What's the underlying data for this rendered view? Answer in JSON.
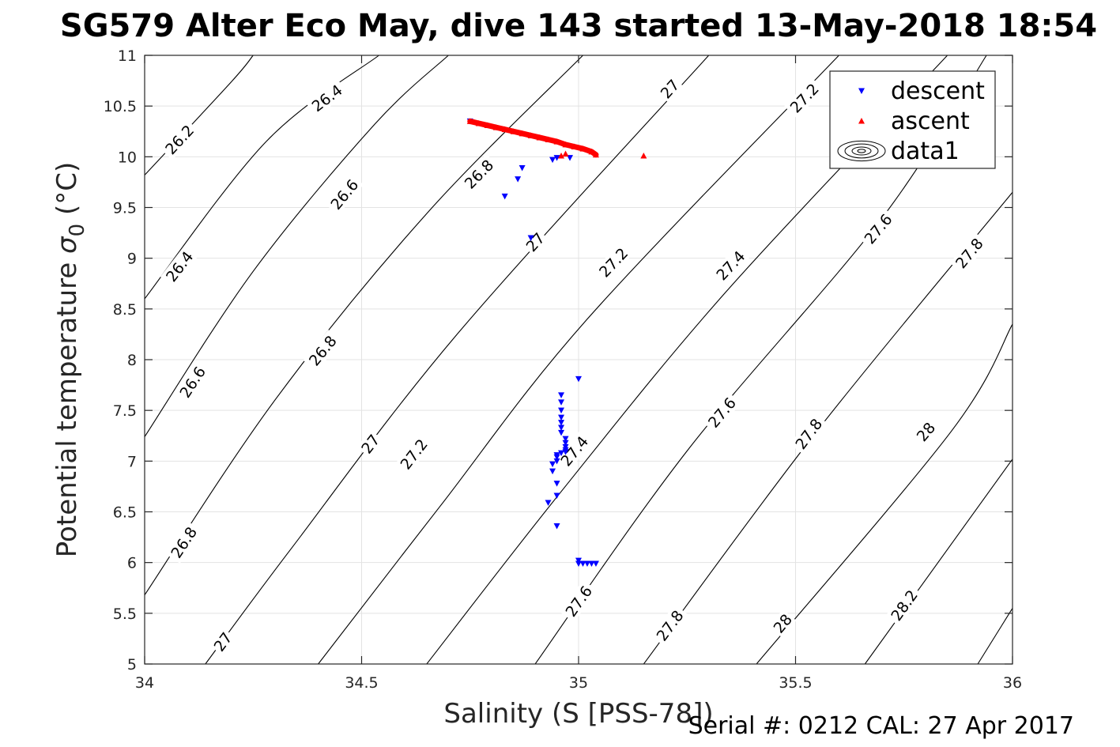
{
  "chart_data": {
    "type": "scatter",
    "title": "SG579 Alter Eco May, dive 143 started 13-May-2018 18:54",
    "xlabel": "Salinity (S [PSS-78])",
    "ylabel": "Potential temperature σ0 (°C)",
    "ylabel_main": "Potential temperature ",
    "ylabel_sigma": "σ",
    "ylabel_sub": "0",
    "ylabel_unit": " (°C)",
    "footer": "Serial #: 0212  CAL: 27 Apr 2017",
    "xlim": [
      34,
      36
    ],
    "ylim": [
      5,
      11
    ],
    "grid": true,
    "legend_position": "top-right",
    "x_ticks": [
      34,
      34.5,
      35,
      35.5,
      36
    ],
    "x_tick_labels": [
      "34",
      "34.5",
      "35",
      "35.5",
      "36"
    ],
    "y_ticks": [
      5,
      5.5,
      6,
      6.5,
      7,
      7.5,
      8,
      8.5,
      9,
      9.5,
      10,
      10.5,
      11
    ],
    "y_tick_labels": [
      "5",
      "5.5",
      "6",
      "6.5",
      "7",
      "7.5",
      "8",
      "8.5",
      "9",
      "9.5",
      "10",
      "10.5",
      "11"
    ],
    "legend": [
      {
        "name": "descent",
        "marker": "triangle-down",
        "color": "#0000ff"
      },
      {
        "name": "ascent",
        "marker": "triangle-up",
        "color": "#ff0000"
      },
      {
        "name": "data1",
        "marker": "contour",
        "color": "#000000"
      }
    ],
    "series": [
      {
        "name": "descent",
        "marker": "triangle-down",
        "color": "#0000ff",
        "points": [
          [
            34.75,
            10.35
          ],
          [
            34.95,
            9.99
          ],
          [
            34.94,
            9.97
          ],
          [
            34.98,
            9.99
          ],
          [
            34.87,
            9.89
          ],
          [
            34.86,
            9.78
          ],
          [
            34.83,
            9.61
          ],
          [
            34.89,
            9.2
          ],
          [
            35.0,
            7.81
          ],
          [
            34.96,
            7.65
          ],
          [
            34.96,
            7.58
          ],
          [
            34.96,
            7.5
          ],
          [
            34.96,
            7.43
          ],
          [
            34.96,
            7.38
          ],
          [
            34.96,
            7.33
          ],
          [
            34.96,
            7.28
          ],
          [
            34.97,
            7.22
          ],
          [
            34.97,
            7.18
          ],
          [
            34.97,
            7.14
          ],
          [
            34.97,
            7.11
          ],
          [
            34.97,
            7.09
          ],
          [
            34.96,
            7.08
          ],
          [
            34.95,
            7.06
          ],
          [
            34.95,
            7.04
          ],
          [
            34.95,
            7.0
          ],
          [
            34.94,
            6.97
          ],
          [
            34.94,
            6.9
          ],
          [
            34.95,
            6.78
          ],
          [
            34.95,
            6.66
          ],
          [
            34.93,
            6.59
          ],
          [
            34.95,
            6.36
          ],
          [
            35.0,
            6.02
          ],
          [
            35.0,
            5.99
          ],
          [
            35.01,
            5.99
          ],
          [
            35.02,
            5.99
          ],
          [
            35.03,
            5.99
          ],
          [
            35.04,
            5.99
          ]
        ]
      },
      {
        "name": "ascent",
        "marker": "triangle-up",
        "color": "#ff0000",
        "points": [
          [
            34.75,
            10.35
          ],
          [
            34.77,
            10.33
          ],
          [
            34.79,
            10.31
          ],
          [
            34.81,
            10.29
          ],
          [
            34.83,
            10.27
          ],
          [
            34.85,
            10.25
          ],
          [
            34.87,
            10.23
          ],
          [
            34.89,
            10.21
          ],
          [
            34.91,
            10.19
          ],
          [
            34.93,
            10.17
          ],
          [
            34.95,
            10.15
          ],
          [
            34.97,
            10.12
          ],
          [
            34.99,
            10.1
          ],
          [
            35.01,
            10.08
          ],
          [
            35.03,
            10.05
          ],
          [
            35.04,
            10.02
          ],
          [
            34.97,
            10.03
          ],
          [
            34.96,
            10.01
          ],
          [
            35.15,
            10.01
          ]
        ]
      }
    ],
    "contours": [
      {
        "label": "26.2",
        "p": [
          [
            34.0,
            9.82
          ],
          [
            34.2,
            10.74
          ],
          [
            34.25,
            11.0
          ]
        ],
        "labels_at": [
          [
            34.08,
            10.17
          ]
        ]
      },
      {
        "label": "26.4",
        "p": [
          [
            34.0,
            8.6
          ],
          [
            34.28,
            10.15
          ],
          [
            34.54,
            11.0
          ]
        ],
        "labels_at": [
          [
            34.08,
            8.92
          ],
          [
            34.42,
            10.58
          ]
        ]
      },
      {
        "label": "26.6",
        "p": [
          [
            34.0,
            7.24
          ],
          [
            34.25,
            8.87
          ],
          [
            34.53,
            10.32
          ],
          [
            34.7,
            11.0
          ]
        ],
        "labels_at": [
          [
            34.11,
            7.78
          ],
          [
            34.46,
            9.63
          ]
        ]
      },
      {
        "label": "26.8",
        "p": [
          [
            34.0,
            5.68
          ],
          [
            34.3,
            7.6
          ],
          [
            34.65,
            9.44
          ],
          [
            35.01,
            11.0
          ]
        ],
        "labels_at": [
          [
            34.09,
            6.2
          ],
          [
            34.41,
            8.09
          ],
          [
            34.77,
            9.83
          ]
        ]
      },
      {
        "label": "27",
        "p": [
          [
            34.14,
            5.0
          ],
          [
            34.34,
            6.15
          ],
          [
            34.72,
            8.25
          ],
          [
            35.3,
            11.0
          ]
        ],
        "labels_at": [
          [
            34.18,
            5.22
          ],
          [
            34.52,
            7.17
          ],
          [
            34.9,
            9.16
          ],
          [
            35.21,
            10.67
          ]
        ]
      },
      {
        "label": "27.2",
        "p": [
          [
            34.4,
            5.0
          ],
          [
            34.68,
            6.55
          ],
          [
            35.02,
            8.4
          ],
          [
            35.6,
            11.0
          ]
        ],
        "labels_at": [
          [
            34.62,
            7.07
          ],
          [
            35.08,
            8.96
          ],
          [
            35.52,
            10.58
          ]
        ]
      },
      {
        "label": "27.4",
        "p": [
          [
            34.65,
            5.0
          ],
          [
            34.96,
            6.7
          ],
          [
            35.34,
            8.67
          ],
          [
            35.85,
            11.0
          ]
        ],
        "labels_at": [
          [
            34.99,
            7.1
          ],
          [
            35.35,
            8.93
          ]
        ]
      },
      {
        "label": "27.6",
        "p": [
          [
            34.9,
            5.0
          ],
          [
            35.25,
            7.1
          ],
          [
            35.7,
            9.4
          ],
          [
            35.94,
            11.0
          ]
        ],
        "labels_at": [
          [
            35.0,
            5.62
          ],
          [
            35.33,
            7.48
          ],
          [
            35.69,
            9.29
          ]
        ]
      },
      {
        "label": "27.8",
        "p": [
          [
            35.15,
            5.0
          ],
          [
            35.55,
            7.3
          ],
          [
            36.0,
            9.65
          ]
        ],
        "labels_at": [
          [
            35.21,
            5.38
          ],
          [
            35.53,
            7.27
          ],
          [
            35.9,
            9.05
          ]
        ]
      },
      {
        "label": "28",
        "p": [
          [
            35.41,
            5.0
          ],
          [
            35.86,
            7.3
          ],
          [
            36.0,
            8.35
          ]
        ],
        "labels_at": [
          [
            35.47,
            5.4
          ],
          [
            35.8,
            7.29
          ]
        ]
      },
      {
        "label": "28.2",
        "p": [
          [
            35.66,
            5.0
          ],
          [
            36.0,
            7.02
          ]
        ],
        "labels_at": [
          [
            35.75,
            5.58
          ]
        ]
      },
      {
        "label": "",
        "p": [
          [
            35.92,
            5.0
          ],
          [
            36.0,
            5.55
          ]
        ],
        "labels_at": []
      }
    ]
  }
}
